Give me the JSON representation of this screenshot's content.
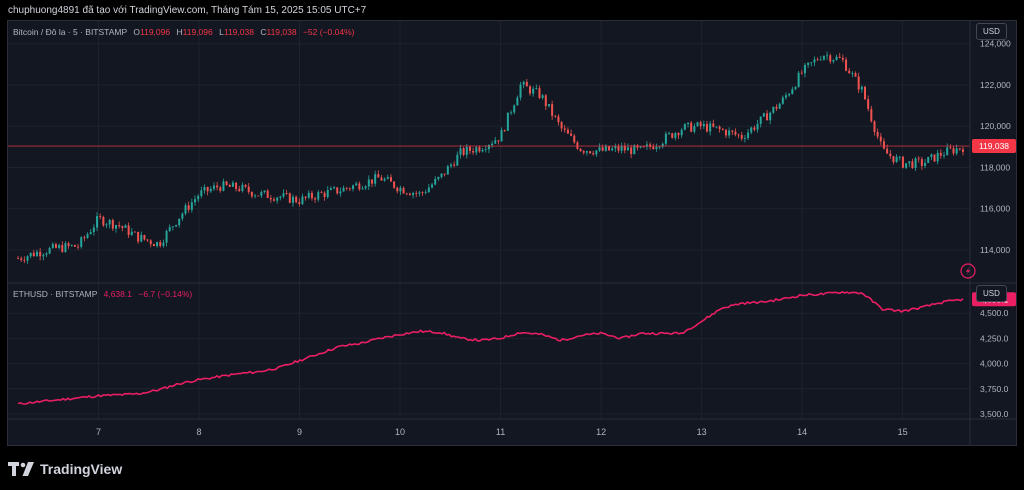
{
  "header": {
    "text": "chuphuong4891 đã tạo với TradingView.com, Tháng Tám 15, 2025 15:05 UTC+7"
  },
  "btc_pane": {
    "symbol": "Bitcoin / Đô la · 5 · BITSTAMP",
    "ohlc": {
      "open_label": "O",
      "open": "119,096",
      "high_label": "H",
      "high": "119,096",
      "low_label": "L",
      "low": "119,038",
      "close_label": "C",
      "close": "119,038"
    },
    "change": "−52 (−0.04%)",
    "currency": "USD",
    "last_price": "119,038",
    "colors": {
      "up": "#26a69a",
      "down": "#ef5350",
      "price_line": "#f23645"
    }
  },
  "eth_pane": {
    "symbol": "ETHUSD · BITSTAMP",
    "value": "4,638.1",
    "change": "−6.7 (−0.14%)",
    "currency": "USD",
    "last_price": "4,638.1",
    "colors": {
      "line": "#e91e63"
    }
  },
  "footer": {
    "logo_text": "TradingView"
  },
  "chart_data": [
    {
      "type": "candlestick",
      "title": "",
      "x_tick_labels": [
        "7",
        "8",
        "9",
        "10",
        "11",
        "12",
        "13",
        "14",
        "15"
      ],
      "y_tick_labels": [
        "114,000",
        "116,000",
        "118,000",
        "120,000",
        "122,000",
        "124,000"
      ],
      "ylim": [
        112400,
        125100
      ],
      "x": [
        6.2,
        6.4,
        6.6,
        6.8,
        7.0,
        7.2,
        7.4,
        7.6,
        7.8,
        8.0,
        8.2,
        8.4,
        8.6,
        8.8,
        9.0,
        9.2,
        9.4,
        9.6,
        9.8,
        10.0,
        10.2,
        10.4,
        10.6,
        10.8,
        11.0,
        11.2,
        11.4,
        11.6,
        11.8,
        12.0,
        12.2,
        12.4,
        12.6,
        12.8,
        13.0,
        13.2,
        13.4,
        13.6,
        13.8,
        14.0,
        14.2,
        14.4,
        14.6,
        14.8,
        15.0,
        15.2,
        15.4,
        15.6
      ],
      "close": [
        113600,
        113900,
        114100,
        114200,
        115500,
        115200,
        114600,
        114300,
        115600,
        116700,
        117100,
        117000,
        116700,
        116600,
        116400,
        116700,
        116900,
        117200,
        117500,
        117000,
        116700,
        117500,
        118700,
        119000,
        119500,
        122000,
        121500,
        119900,
        118900,
        118800,
        118900,
        118800,
        119300,
        119900,
        120000,
        119800,
        119500,
        120300,
        121200,
        122600,
        123500,
        123200,
        121700,
        118800,
        118200,
        118200,
        118700,
        119000
      ],
      "grid": true,
      "last_value": 119038
    },
    {
      "type": "line",
      "title": "",
      "x_tick_labels": [
        "7",
        "8",
        "9",
        "10",
        "11",
        "12",
        "13",
        "14",
        "15"
      ],
      "y_tick_labels": [
        "3,500.0",
        "3,750.0",
        "4,000.0",
        "4,250.0",
        "4,500.0"
      ],
      "ylim": [
        3450,
        4800
      ],
      "x": [
        6.2,
        6.4,
        6.6,
        6.8,
        7.0,
        7.2,
        7.4,
        7.6,
        7.8,
        8.0,
        8.2,
        8.4,
        8.6,
        8.8,
        9.0,
        9.2,
        9.4,
        9.6,
        9.8,
        10.0,
        10.2,
        10.4,
        10.6,
        10.8,
        11.0,
        11.2,
        11.4,
        11.6,
        11.8,
        12.0,
        12.2,
        12.4,
        12.6,
        12.8,
        13.0,
        13.2,
        13.4,
        13.6,
        13.8,
        14.0,
        14.2,
        14.4,
        14.6,
        14.8,
        15.0,
        15.2,
        15.4,
        15.6
      ],
      "values": [
        3600,
        3620,
        3640,
        3660,
        3680,
        3690,
        3700,
        3740,
        3800,
        3840,
        3870,
        3900,
        3920,
        3960,
        4030,
        4100,
        4170,
        4200,
        4250,
        4290,
        4320,
        4310,
        4250,
        4230,
        4250,
        4310,
        4290,
        4230,
        4280,
        4300,
        4250,
        4300,
        4300,
        4300,
        4420,
        4550,
        4600,
        4610,
        4640,
        4680,
        4690,
        4710,
        4700,
        4540,
        4520,
        4560,
        4610,
        4638
      ],
      "grid": true,
      "last_value": 4638.1
    }
  ]
}
